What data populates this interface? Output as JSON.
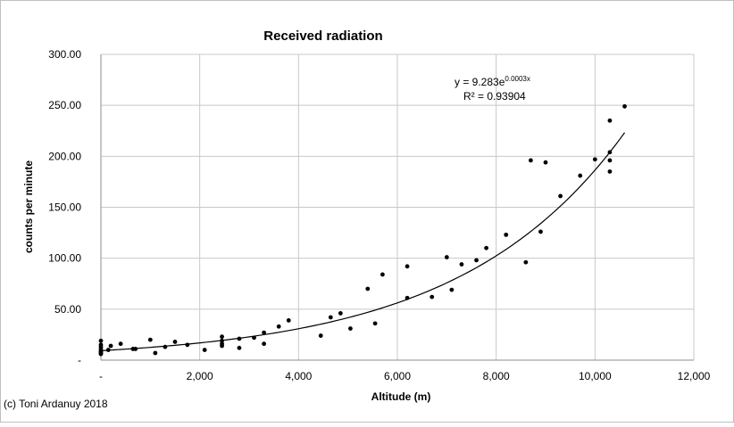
{
  "chart_data": {
    "type": "scatter",
    "title": "Received radiation",
    "xlabel": "Altitude (m)",
    "ylabel": "counts per minute",
    "xlim": [
      0,
      12000
    ],
    "ylim": [
      0,
      300
    ],
    "x_ticks": [
      "-",
      "2,000",
      "4,000",
      "6,000",
      "8,000",
      "10,000",
      "12,000"
    ],
    "y_ticks": [
      "-",
      "50.00",
      "100.00",
      "150.00",
      "200.00",
      "250.00",
      "300.00"
    ],
    "grid": true,
    "legend": "none",
    "trendline": {
      "type": "exponential",
      "a": 9.283,
      "b": 0.0003,
      "equation_prefix": "y = 9.283e",
      "equation_exponent": "0.0003x",
      "r2_label": "R² = 0.93904"
    },
    "series": [
      {
        "color": "#000000",
        "points": [
          [
            0,
            19
          ],
          [
            0,
            15
          ],
          [
            0,
            13
          ],
          [
            0,
            11
          ],
          [
            0,
            9
          ],
          [
            0,
            8
          ],
          [
            0,
            7
          ],
          [
            0,
            6
          ],
          [
            150,
            10
          ],
          [
            200,
            14
          ],
          [
            400,
            16
          ],
          [
            650,
            11
          ],
          [
            700,
            11
          ],
          [
            1000,
            20
          ],
          [
            1100,
            7
          ],
          [
            1300,
            13
          ],
          [
            1500,
            18
          ],
          [
            1750,
            15
          ],
          [
            2100,
            10
          ],
          [
            2450,
            23
          ],
          [
            2450,
            19
          ],
          [
            2450,
            16
          ],
          [
            2450,
            14
          ],
          [
            2800,
            21
          ],
          [
            2800,
            12
          ],
          [
            3100,
            22
          ],
          [
            3300,
            27
          ],
          [
            3300,
            16
          ],
          [
            3600,
            33
          ],
          [
            3800,
            39
          ],
          [
            4450,
            24
          ],
          [
            4650,
            42
          ],
          [
            4850,
            46
          ],
          [
            5050,
            31
          ],
          [
            5400,
            70
          ],
          [
            5550,
            36
          ],
          [
            5700,
            84
          ],
          [
            6200,
            92
          ],
          [
            6200,
            61
          ],
          [
            6700,
            62
          ],
          [
            7000,
            101
          ],
          [
            7100,
            69
          ],
          [
            7300,
            94
          ],
          [
            7600,
            98
          ],
          [
            7800,
            110
          ],
          [
            8200,
            123
          ],
          [
            8600,
            96
          ],
          [
            8700,
            196
          ],
          [
            8900,
            126
          ],
          [
            9000,
            194
          ],
          [
            9300,
            161
          ],
          [
            9700,
            181
          ],
          [
            10000,
            197
          ],
          [
            10300,
            235
          ],
          [
            10300,
            204
          ],
          [
            10300,
            196
          ],
          [
            10300,
            185
          ],
          [
            10600,
            249
          ]
        ]
      }
    ]
  },
  "footer": {
    "credit": "(c) Toni Ardanuy 2018"
  }
}
